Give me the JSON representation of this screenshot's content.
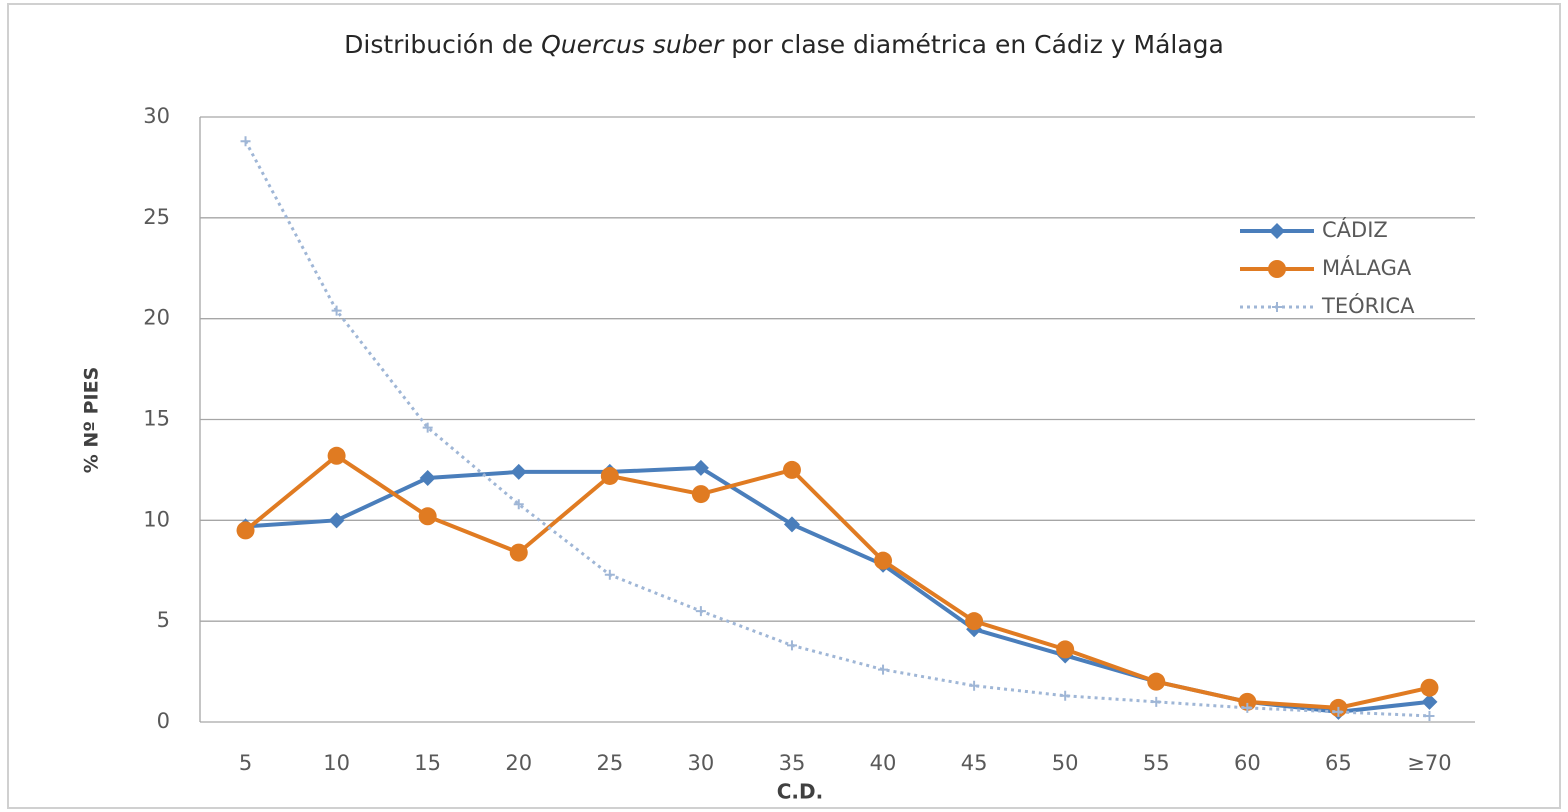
{
  "chart_data": {
    "type": "line",
    "title": [
      "Distribución de",
      "Quercus suber",
      "por clase diamétrica en Cádiz y  Málaga"
    ],
    "xlabel": "C.D.",
    "ylabel": "% Nº PIES",
    "categories": [
      "5",
      "10",
      "15",
      "20",
      "25",
      "30",
      "35",
      "40",
      "45",
      "50",
      "55",
      "60",
      "65",
      "≥70"
    ],
    "series": [
      {
        "name": "CÁDIZ",
        "color": "#4a7ebb",
        "marker": "diamond",
        "dashed": false,
        "values": [
          9.7,
          10.0,
          12.1,
          12.4,
          12.4,
          12.6,
          9.8,
          7.8,
          4.6,
          3.3,
          2.0,
          1.0,
          0.5,
          1.0
        ]
      },
      {
        "name": "MÁLAGA",
        "color": "#e07b22",
        "marker": "circle",
        "dashed": false,
        "values": [
          9.5,
          13.2,
          10.2,
          8.4,
          12.2,
          11.3,
          12.5,
          8.0,
          5.0,
          3.6,
          2.0,
          1.0,
          0.7,
          1.7
        ]
      },
      {
        "name": "TEÓRICA",
        "color": "#9fb6d6",
        "marker": "plus",
        "dashed": true,
        "values": [
          28.8,
          20.4,
          14.6,
          10.8,
          7.3,
          5.5,
          3.8,
          2.6,
          1.8,
          1.3,
          1.0,
          0.7,
          0.5,
          0.3
        ]
      }
    ],
    "ylim": [
      0,
      30
    ],
    "yticks": [
      0,
      5,
      10,
      15,
      20,
      25,
      30
    ],
    "grid": true,
    "legend": "right"
  }
}
